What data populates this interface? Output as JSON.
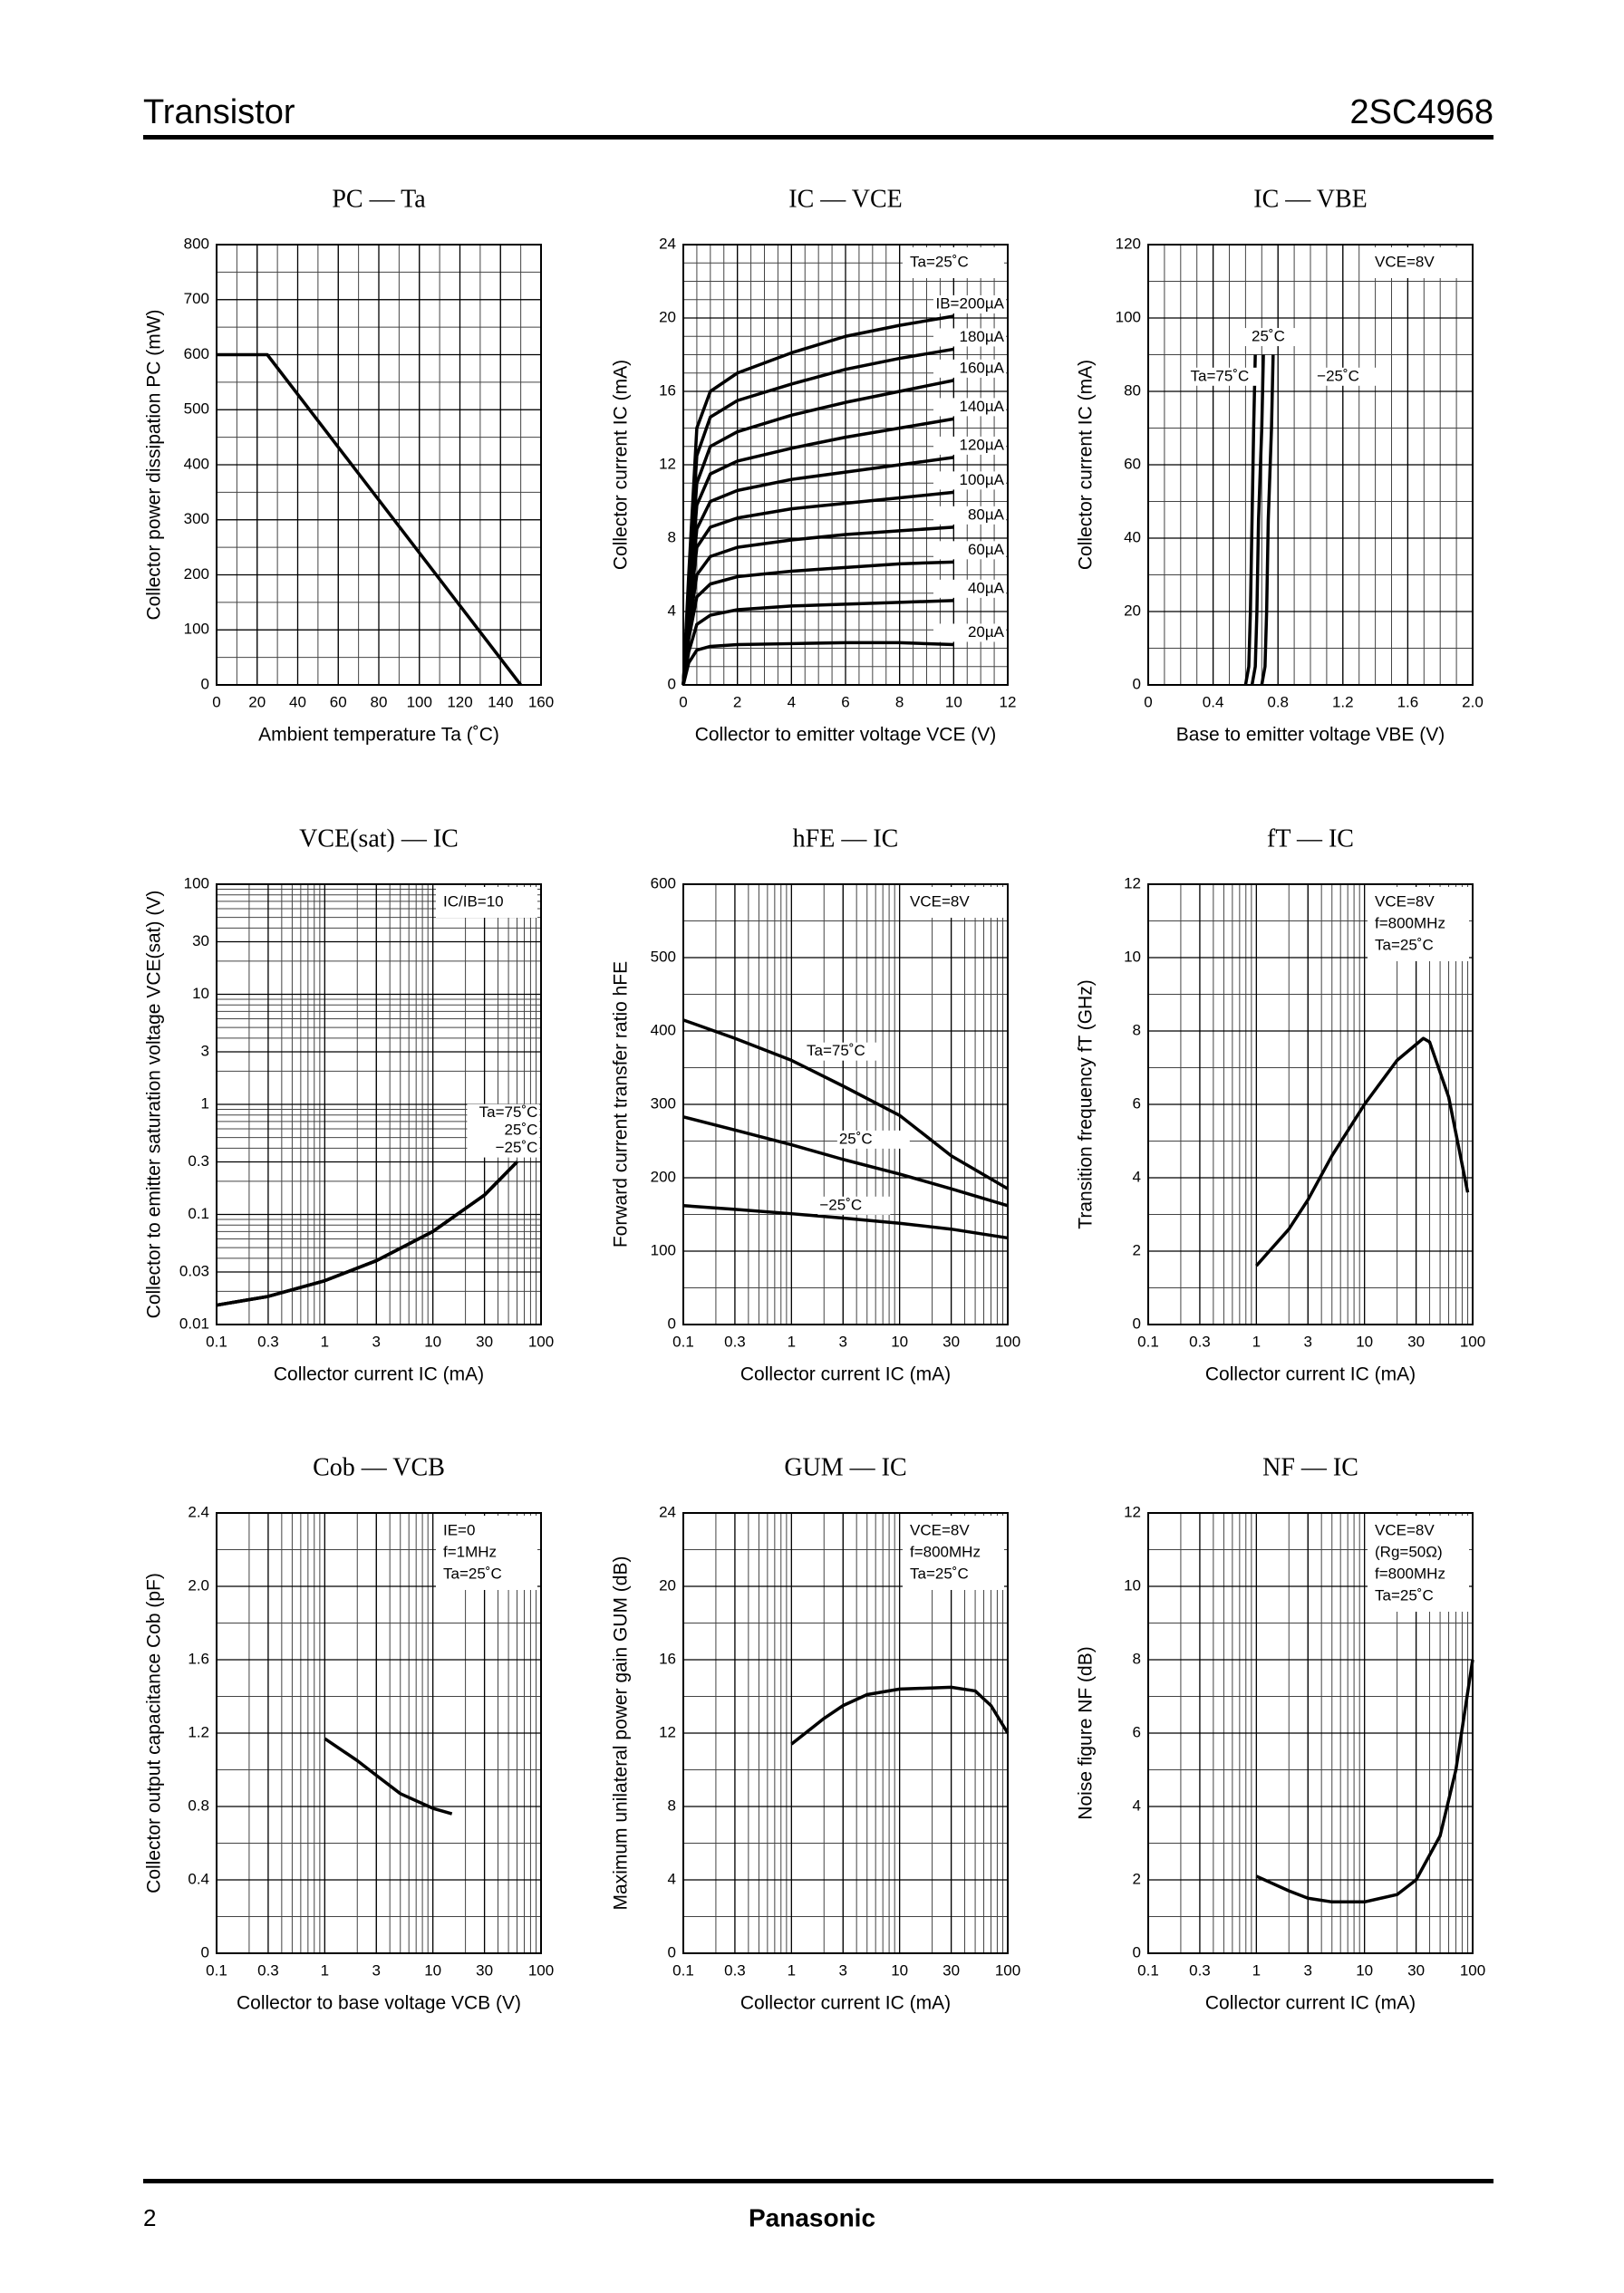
{
  "header": {
    "title": "Transistor",
    "part": "2SC4968"
  },
  "footer": {
    "page": "2",
    "brand": "Panasonic"
  },
  "chart_data": [
    {
      "type": "line",
      "title": "PC — Ta",
      "x_label": "Ambient temperature Ta (˚C)",
      "y_label": "Collector power dissipation PC (mW)",
      "x": [
        0,
        25,
        150
      ],
      "series": [
        {
          "color": "#000000",
          "values": [
            600,
            600,
            0
          ]
        }
      ],
      "xlim": [
        0,
        160
      ],
      "xticks": [
        0,
        20,
        40,
        60,
        80,
        100,
        120,
        140,
        160
      ],
      "ylim": [
        0,
        800
      ],
      "yticks": [
        0,
        100,
        200,
        300,
        400,
        500,
        600,
        700,
        800
      ],
      "grid": true
    },
    {
      "type": "line",
      "title": "IC — VCE",
      "x_label": "Collector to emitter voltage VCE (V)",
      "y_label": "Collector current IC (mA)",
      "annotation": [
        "Ta=25˚C"
      ],
      "x": [
        0,
        0.2,
        0.5,
        1,
        2,
        4,
        6,
        8,
        10
      ],
      "series": [
        {
          "name": "IB=200µA",
          "color": "#000000",
          "values": [
            0,
            6,
            14,
            16,
            17,
            18.1,
            19,
            19.6,
            20.1
          ]
        },
        {
          "name": "180µA",
          "color": "#000000",
          "values": [
            0,
            5.5,
            12.5,
            14.6,
            15.5,
            16.4,
            17.2,
            17.8,
            18.3
          ]
        },
        {
          "name": "160µA",
          "color": "#000000",
          "values": [
            0,
            5,
            11,
            13,
            13.8,
            14.7,
            15.4,
            16,
            16.6
          ]
        },
        {
          "name": "140µA",
          "color": "#000000",
          "values": [
            0,
            4.5,
            9.8,
            11.5,
            12.2,
            12.9,
            13.5,
            14,
            14.5
          ]
        },
        {
          "name": "120µA",
          "color": "#000000",
          "values": [
            0,
            4,
            8.5,
            10,
            10.6,
            11.2,
            11.6,
            12,
            12.4
          ]
        },
        {
          "name": "100µA",
          "color": "#000000",
          "values": [
            0,
            3.5,
            7.5,
            8.6,
            9.1,
            9.6,
            9.9,
            10.2,
            10.5
          ]
        },
        {
          "name": "80µA",
          "color": "#000000",
          "values": [
            0,
            3,
            6,
            7,
            7.5,
            7.9,
            8.2,
            8.4,
            8.6
          ]
        },
        {
          "name": "60µA",
          "color": "#000000",
          "values": [
            0,
            2.5,
            4.8,
            5.5,
            5.9,
            6.2,
            6.4,
            6.6,
            6.7
          ]
        },
        {
          "name": "40µA",
          "color": "#000000",
          "values": [
            0,
            1.8,
            3.3,
            3.8,
            4.1,
            4.3,
            4.4,
            4.5,
            4.6
          ]
        },
        {
          "name": "20µA",
          "color": "#000000",
          "values": [
            0,
            1.2,
            1.9,
            2.1,
            2.2,
            2.25,
            2.3,
            2.3,
            2.2
          ]
        }
      ],
      "xlim": [
        0,
        12
      ],
      "xticks": [
        0,
        2,
        4,
        6,
        8,
        10,
        12
      ],
      "ylim": [
        0,
        24
      ],
      "yticks": [
        0,
        4,
        8,
        12,
        16,
        20,
        24
      ],
      "grid": true
    },
    {
      "type": "line",
      "title": "IC — VBE",
      "x_label": "Base to emitter voltage VBE (V)",
      "y_label": "Collector current IC (mA)",
      "annotation": [
        "VCE=8V"
      ],
      "series": [
        {
          "name": "Ta=75˚C",
          "color": "#000000",
          "x": [
            0.6,
            0.62,
            0.63,
            0.64,
            0.65,
            0.66
          ],
          "values": [
            0,
            5,
            20,
            45,
            70,
            90
          ]
        },
        {
          "name": "25˚C",
          "color": "#000000",
          "x": [
            0.64,
            0.66,
            0.67,
            0.68,
            0.7,
            0.71
          ],
          "values": [
            0,
            5,
            20,
            45,
            70,
            90
          ]
        },
        {
          "name": "−25˚C",
          "color": "#000000",
          "x": [
            0.7,
            0.72,
            0.73,
            0.74,
            0.76,
            0.77
          ],
          "values": [
            0,
            5,
            20,
            45,
            70,
            90
          ]
        }
      ],
      "xlim": [
        0,
        2
      ],
      "xticks": [
        0,
        0.4,
        0.8,
        1.2,
        1.6,
        {
          "value": 2,
          "label": "2.0"
        }
      ],
      "ylim": [
        0,
        120
      ],
      "yticks": [
        0,
        20,
        40,
        60,
        80,
        100,
        120
      ],
      "grid": true
    },
    {
      "type": "line",
      "title": "VCE(sat) — IC",
      "x_label": "Collector current IC (mA)",
      "y_label": "Collector to emitter saturation voltage VCE(sat) (V)",
      "annotation": [
        "IC/IB=10"
      ],
      "x": [
        0.1,
        0.3,
        1,
        3,
        10,
        30,
        60
      ],
      "xscale": "log",
      "yscale": "log",
      "series": [
        {
          "name": "Ta=75˚C",
          "color": "#000000",
          "values": [
            0.015,
            0.018,
            0.025,
            0.038,
            0.07,
            0.15,
            0.3
          ]
        },
        {
          "name": "25˚C",
          "color": "#000000",
          "values": [
            0.015,
            0.018,
            0.025,
            0.038,
            0.07,
            0.15,
            0.3
          ]
        },
        {
          "name": "−25˚C",
          "color": "#000000",
          "values": [
            0.015,
            0.018,
            0.025,
            0.038,
            0.07,
            0.15,
            0.3
          ]
        }
      ],
      "xlim": [
        0.1,
        100
      ],
      "xticks": [
        0.1,
        0.3,
        1,
        3,
        10,
        30,
        100
      ],
      "ylim": [
        0.01,
        100
      ],
      "yticks": [
        0.01,
        0.03,
        0.1,
        0.3,
        1,
        3,
        10,
        30,
        100
      ],
      "grid": true
    },
    {
      "type": "line",
      "title": "hFE — IC",
      "x_label": "Collector current IC (mA)",
      "y_label": "Forward current transfer ratio hFE",
      "annotation": [
        "VCE=8V"
      ],
      "x": [
        0.1,
        0.3,
        1,
        3,
        10,
        30,
        100
      ],
      "xscale": "log",
      "series": [
        {
          "name": "Ta=75˚C",
          "color": "#000000",
          "values": [
            415,
            390,
            360,
            325,
            285,
            230,
            185
          ]
        },
        {
          "name": "25˚C",
          "color": "#000000",
          "values": [
            283,
            265,
            245,
            225,
            205,
            185,
            162
          ]
        },
        {
          "name": "−25˚C",
          "color": "#000000",
          "values": [
            162,
            157,
            151,
            145,
            138,
            130,
            118
          ]
        }
      ],
      "xlim": [
        0.1,
        100
      ],
      "xticks": [
        0.1,
        0.3,
        1,
        3,
        10,
        30,
        100
      ],
      "ylim": [
        0,
        600
      ],
      "yticks": [
        0,
        100,
        200,
        300,
        400,
        500,
        600
      ],
      "grid": true
    },
    {
      "type": "line",
      "title": "fT — IC",
      "x_label": "Collector current IC (mA)",
      "y_label": "Transition frequency fT (GHz)",
      "annotation": [
        "VCE=8V",
        "f=800MHz",
        "Ta=25˚C"
      ],
      "x": [
        1,
        2,
        3,
        5,
        10,
        20,
        35,
        40,
        60,
        90
      ],
      "xscale": "log",
      "series": [
        {
          "color": "#000000",
          "values": [
            1.6,
            2.6,
            3.4,
            4.6,
            6.0,
            7.2,
            7.8,
            7.7,
            6.2,
            3.6
          ]
        }
      ],
      "xlim": [
        0.1,
        100
      ],
      "xticks": [
        0.1,
        0.3,
        1,
        3,
        10,
        30,
        100
      ],
      "ylim": [
        0,
        12
      ],
      "yticks": [
        0,
        2,
        4,
        6,
        8,
        10,
        12
      ],
      "grid": true
    },
    {
      "type": "line",
      "title": "Cob — VCB",
      "x_label": "Collector to base voltage VCB (V)",
      "y_label": "Collector output capacitance Cob (pF)",
      "annotation": [
        "IE=0",
        "f=1MHz",
        "Ta=25˚C"
      ],
      "x": [
        1,
        2,
        3,
        5,
        10,
        15
      ],
      "xscale": "log",
      "series": [
        {
          "color": "#000000",
          "values": [
            1.17,
            1.05,
            0.97,
            0.87,
            0.79,
            0.76
          ]
        }
      ],
      "xlim": [
        0.1,
        100
      ],
      "xticks": [
        0.1,
        0.3,
        1,
        3,
        10,
        30,
        100
      ],
      "ylim": [
        0,
        2.4
      ],
      "yticks": [
        0,
        0.4,
        0.8,
        1.2,
        1.6,
        {
          "value": 2,
          "label": "2.0"
        },
        2.4
      ],
      "grid": true
    },
    {
      "type": "line",
      "title": "GUM — IC",
      "x_label": "Collector current IC (mA)",
      "y_label": "Maximum unilateral power gain GUM (dB)",
      "annotation": [
        "VCE=8V",
        "f=800MHz",
        "Ta=25˚C"
      ],
      "x": [
        1,
        2,
        3,
        5,
        10,
        30,
        50,
        70,
        100
      ],
      "xscale": "log",
      "series": [
        {
          "color": "#000000",
          "values": [
            11.4,
            12.8,
            13.5,
            14.1,
            14.4,
            14.5,
            14.3,
            13.5,
            12
          ]
        }
      ],
      "xlim": [
        0.1,
        100
      ],
      "xticks": [
        0.1,
        0.3,
        1,
        3,
        10,
        30,
        100
      ],
      "ylim": [
        0,
        24
      ],
      "yticks": [
        0,
        4,
        8,
        12,
        16,
        20,
        24
      ],
      "grid": true
    },
    {
      "type": "line",
      "title": "NF — IC",
      "x_label": "Collector current IC (mA)",
      "y_label": "Noise figure NF (dB)",
      "annotation": [
        "VCE=8V",
        "(Rg=50Ω)",
        "f=800MHz",
        "Ta=25˚C"
      ],
      "x": [
        1,
        2,
        3,
        5,
        10,
        20,
        30,
        50,
        70,
        100
      ],
      "xscale": "log",
      "series": [
        {
          "color": "#000000",
          "values": [
            2.1,
            1.7,
            1.5,
            1.4,
            1.4,
            1.6,
            2.0,
            3.2,
            5,
            8
          ]
        }
      ],
      "xlim": [
        0.1,
        100
      ],
      "xticks": [
        0.1,
        0.3,
        1,
        3,
        10,
        30,
        100
      ],
      "ylim": [
        0,
        12
      ],
      "yticks": [
        0,
        2,
        4,
        6,
        8,
        10,
        12
      ],
      "grid": true
    }
  ]
}
